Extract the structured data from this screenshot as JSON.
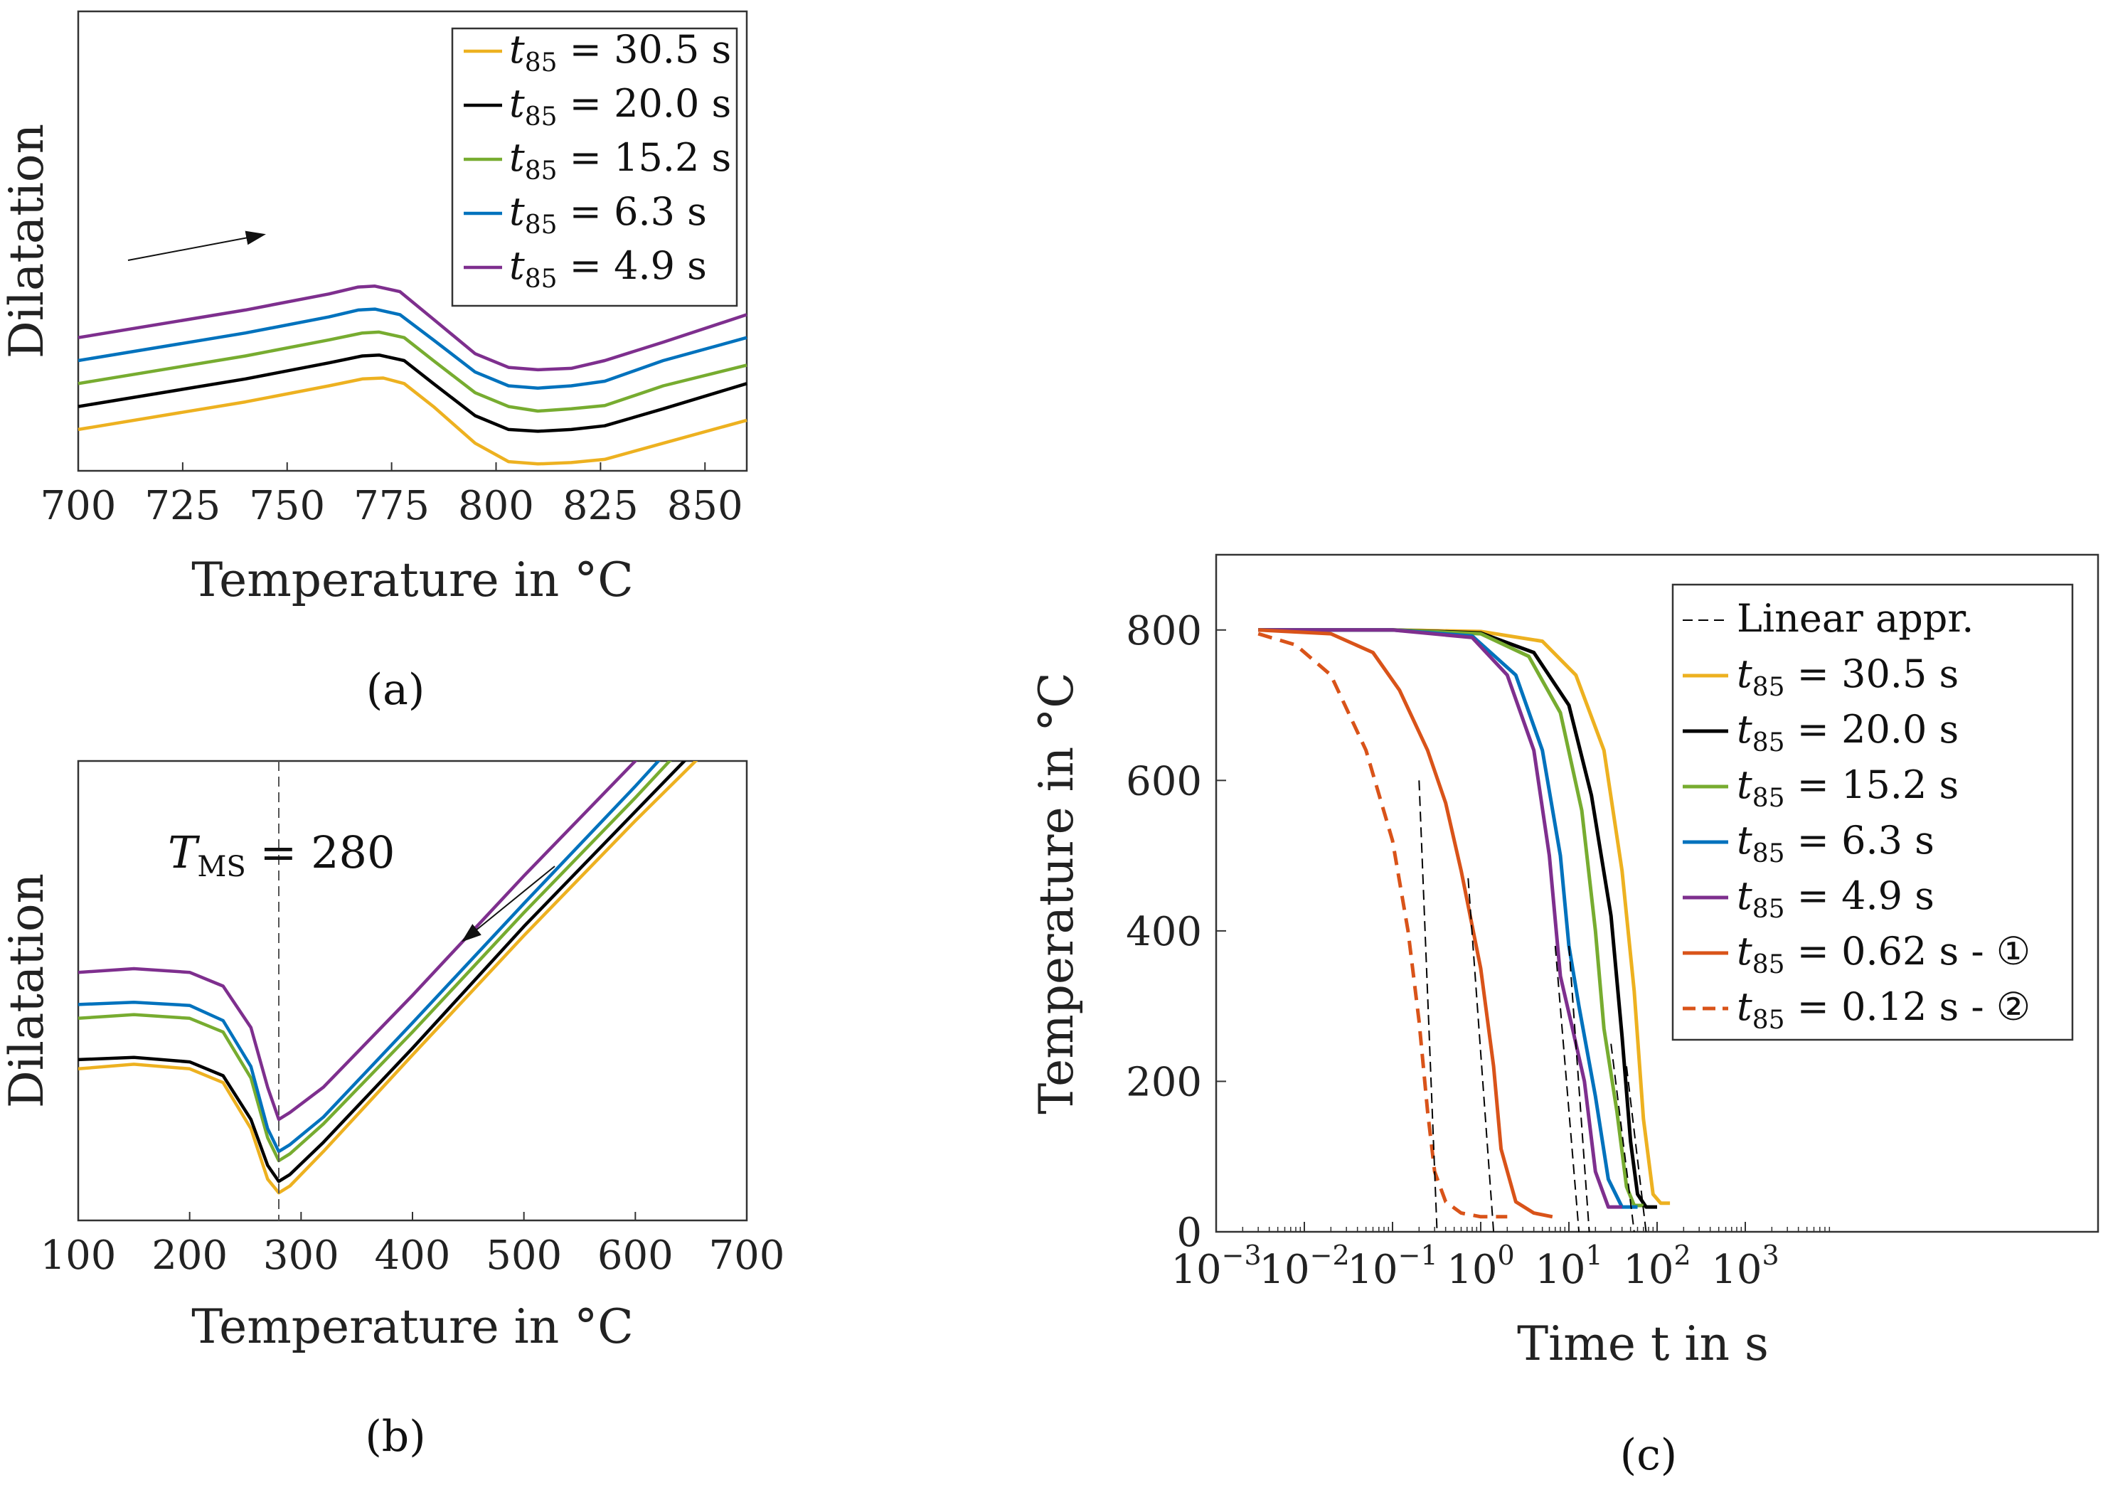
{
  "colors": {
    "s30": "#EDB120",
    "s20": "#000000",
    "s15": "#77AC30",
    "s6": "#0072BD",
    "s4": "#7E2F8E",
    "s062": "#D95319",
    "s012": "#D95319",
    "linear": "#000000"
  },
  "chart_data": [
    {
      "id": "a",
      "type": "line",
      "caption": "(a)",
      "xlabel": "Temperature in °C",
      "ylabel": "Dilatation",
      "xlim": [
        700,
        860
      ],
      "xticks": [
        700,
        725,
        750,
        775,
        800,
        825,
        850
      ],
      "ylim": [
        0,
        100
      ],
      "yticks_shown": false,
      "annotation": "arrow pointing in direction of increasing temperature (heating)",
      "legend": {
        "position": "top-right"
      },
      "series": [
        {
          "key": "s30",
          "label_main": "t",
          "label_sub": "85",
          "label_rest": " = 30.5 s",
          "x": [
            700,
            740,
            760,
            768,
            773,
            778,
            785,
            795,
            803,
            810,
            818,
            826,
            840,
            860
          ],
          "y": [
            9,
            15,
            18.5,
            20,
            20.2,
            19,
            14,
            6,
            2,
            1.5,
            1.8,
            2.5,
            6,
            11
          ]
        },
        {
          "key": "s20",
          "label_main": "t",
          "label_sub": "85",
          "label_rest": " = 20.0 s",
          "x": [
            700,
            740,
            760,
            768,
            772,
            778,
            785,
            795,
            803,
            810,
            818,
            826,
            840,
            860
          ],
          "y": [
            14,
            20,
            23.5,
            25,
            25.2,
            24,
            19,
            12,
            9,
            8.6,
            9,
            9.8,
            13.5,
            19
          ]
        },
        {
          "key": "s15",
          "label_main": "t",
          "label_sub": "85",
          "label_rest": " = 15.2 s",
          "x": [
            700,
            740,
            760,
            768,
            772,
            778,
            785,
            795,
            803,
            810,
            818,
            826,
            840,
            860
          ],
          "y": [
            19,
            25,
            28.5,
            30,
            30.2,
            29,
            24,
            17,
            14,
            13,
            13.5,
            14.2,
            18.5,
            23
          ]
        },
        {
          "key": "s6",
          "label_main": "t",
          "label_sub": "85",
          "label_rest": " = 6.3 s",
          "x": [
            700,
            740,
            760,
            767,
            771,
            777,
            785,
            795,
            803,
            810,
            818,
            826,
            840,
            860
          ],
          "y": [
            24,
            30,
            33.5,
            35,
            35.2,
            34,
            28.5,
            21.5,
            18.5,
            18,
            18.5,
            19.5,
            24,
            29
          ]
        },
        {
          "key": "s4",
          "label_main": "t",
          "label_sub": "85",
          "label_rest": " = 4.9 s",
          "x": [
            700,
            740,
            760,
            767,
            771,
            777,
            785,
            795,
            803,
            810,
            818,
            826,
            840,
            860
          ],
          "y": [
            29,
            35,
            38.5,
            40,
            40.2,
            39,
            33,
            25.5,
            22.5,
            22,
            22.3,
            24,
            28,
            34
          ]
        }
      ]
    },
    {
      "id": "b",
      "type": "line",
      "caption": "(b)",
      "xlabel": "Temperature in °C",
      "ylabel": "Dilatation",
      "xlim": [
        100,
        700
      ],
      "xticks": [
        100,
        200,
        300,
        400,
        500,
        600,
        700
      ],
      "ylim": [
        0,
        100
      ],
      "yticks_shown": false,
      "vline": {
        "x": 280,
        "label_main": "T",
        "label_sub": "MS",
        "label_rest": " = 280"
      },
      "annotation": "arrow pointing in direction of decreasing temperature (cooling)",
      "series": [
        {
          "key": "s30",
          "x": [
            100,
            150,
            200,
            230,
            255,
            270,
            280,
            290,
            320,
            400,
            500,
            600,
            700
          ],
          "y": [
            33,
            34,
            33,
            30,
            20,
            9,
            6,
            7.5,
            15,
            36,
            62,
            87,
            111
          ]
        },
        {
          "key": "s20",
          "x": [
            100,
            150,
            200,
            230,
            255,
            270,
            280,
            290,
            320,
            400,
            500,
            600,
            700
          ],
          "y": [
            35,
            35.5,
            34.5,
            31.5,
            22,
            12,
            8.5,
            10,
            17,
            37.5,
            64,
            89,
            114
          ]
        },
        {
          "key": "s15",
          "x": [
            100,
            150,
            200,
            230,
            255,
            270,
            280,
            290,
            320,
            400,
            500,
            600,
            700
          ],
          "y": [
            44,
            44.8,
            44,
            41,
            31,
            18,
            13,
            14.5,
            21,
            41,
            67,
            92,
            118
          ]
        },
        {
          "key": "s6",
          "x": [
            100,
            150,
            200,
            230,
            255,
            270,
            280,
            290,
            320,
            400,
            500,
            600,
            700
          ],
          "y": [
            47,
            47.5,
            46.8,
            43.5,
            33.5,
            20,
            15,
            16.5,
            22.5,
            43,
            69,
            94.5,
            121
          ]
        },
        {
          "key": "s4",
          "x": [
            100,
            150,
            200,
            230,
            255,
            270,
            280,
            290,
            320,
            400,
            500,
            600,
            700
          ],
          "y": [
            54,
            54.8,
            54,
            51,
            42,
            29,
            22,
            23.5,
            29,
            49,
            75,
            100,
            127
          ]
        }
      ]
    },
    {
      "id": "c",
      "type": "line",
      "caption": "(c)",
      "xlabel": "Time t in s",
      "ylabel": "Temperature in °C",
      "xscale": "log",
      "xlim": [
        0.001,
        10000000
      ],
      "xticks_exp": [
        -3,
        -2,
        -1,
        0,
        1,
        2,
        3
      ],
      "ylim": [
        0,
        900
      ],
      "yticks": [
        0,
        200,
        400,
        600,
        800
      ],
      "legend": {
        "position": "top-right"
      },
      "legend_entries": [
        {
          "key": "linear",
          "dashed": true,
          "label": "Linear appr."
        },
        {
          "key": "s30",
          "dashed": false,
          "label_main": "t",
          "label_sub": "85",
          "label_rest": " = 30.5 s"
        },
        {
          "key": "s20",
          "dashed": false,
          "label_main": "t",
          "label_sub": "85",
          "label_rest": " = 20.0 s"
        },
        {
          "key": "s15",
          "dashed": false,
          "label_main": "t",
          "label_sub": "85",
          "label_rest": " = 15.2 s"
        },
        {
          "key": "s6",
          "dashed": false,
          "label_main": "t",
          "label_sub": "85",
          "label_rest": " = 6.3 s"
        },
        {
          "key": "s4",
          "dashed": false,
          "label_main": "t",
          "label_sub": "85",
          "label_rest": " = 4.9 s"
        },
        {
          "key": "s062",
          "dashed": false,
          "label_main": "t",
          "label_sub": "85",
          "label_rest": " = 0.62 s - ①"
        },
        {
          "key": "s012",
          "dashed": true,
          "label_main": "t",
          "label_sub": "85",
          "label_rest": " = 0.12 s - ②"
        }
      ],
      "series": [
        {
          "key": "s30",
          "dashed": false,
          "x": [
            0.003,
            0.1,
            1,
            5,
            12,
            25,
            40,
            55,
            70,
            90,
            110,
            140
          ],
          "y": [
            800,
            800,
            798,
            785,
            740,
            640,
            480,
            320,
            150,
            50,
            38,
            38
          ]
        },
        {
          "key": "s20",
          "dashed": false,
          "x": [
            0.003,
            0.1,
            1,
            4,
            10,
            18,
            30,
            40,
            50,
            60,
            75,
            100
          ],
          "y": [
            800,
            800,
            796,
            770,
            700,
            580,
            420,
            260,
            120,
            50,
            33,
            33
          ]
        },
        {
          "key": "s15",
          "dashed": false,
          "x": [
            0.003,
            0.1,
            1,
            3.5,
            8,
            14,
            20,
            25,
            35,
            45,
            55,
            70
          ],
          "y": [
            800,
            800,
            795,
            765,
            690,
            560,
            400,
            270,
            160,
            60,
            35,
            35
          ]
        },
        {
          "key": "s6",
          "dashed": false,
          "x": [
            0.003,
            0.1,
            0.8,
            2.5,
            5,
            8,
            10,
            13,
            20,
            28,
            40,
            60
          ],
          "y": [
            800,
            800,
            792,
            740,
            640,
            500,
            380,
            300,
            180,
            70,
            33,
            33
          ]
        },
        {
          "key": "s4",
          "dashed": false,
          "x": [
            0.003,
            0.1,
            0.8,
            2,
            4,
            6,
            8,
            11,
            15,
            20,
            28,
            40
          ],
          "y": [
            800,
            800,
            790,
            740,
            640,
            500,
            340,
            270,
            200,
            80,
            33,
            33
          ]
        },
        {
          "key": "s062",
          "dashed": false,
          "x": [
            0.003,
            0.02,
            0.06,
            0.12,
            0.25,
            0.4,
            0.6,
            1,
            1.4,
            1.7,
            2.5,
            4,
            6.5
          ],
          "y": [
            800,
            795,
            770,
            720,
            640,
            570,
            480,
            350,
            220,
            110,
            40,
            25,
            20
          ]
        },
        {
          "key": "s012",
          "dashed": true,
          "x": [
            0.003,
            0.008,
            0.02,
            0.05,
            0.1,
            0.15,
            0.2,
            0.25,
            0.3,
            0.4,
            0.6,
            1,
            2
          ],
          "y": [
            795,
            780,
            740,
            640,
            520,
            400,
            280,
            160,
            80,
            40,
            25,
            20,
            20
          ]
        },
        {
          "key": "linear",
          "dashed": true,
          "thin": true,
          "x": [
            0.2,
            0.32
          ],
          "y": [
            600,
            0
          ]
        },
        {
          "key": "linear",
          "dashed": true,
          "thin": true,
          "x": [
            0.72,
            1.4
          ],
          "y": [
            470,
            0
          ]
        },
        {
          "key": "linear",
          "dashed": true,
          "thin": true,
          "x": [
            7,
            13
          ],
          "y": [
            380,
            0
          ]
        },
        {
          "key": "linear",
          "dashed": true,
          "thin": true,
          "x": [
            10,
            17
          ],
          "y": [
            380,
            0
          ]
        },
        {
          "key": "linear",
          "dashed": true,
          "thin": true,
          "x": [
            30,
            55
          ],
          "y": [
            250,
            0
          ]
        },
        {
          "key": "linear",
          "dashed": true,
          "thin": true,
          "x": [
            45,
            75
          ],
          "y": [
            220,
            0
          ]
        }
      ]
    }
  ]
}
